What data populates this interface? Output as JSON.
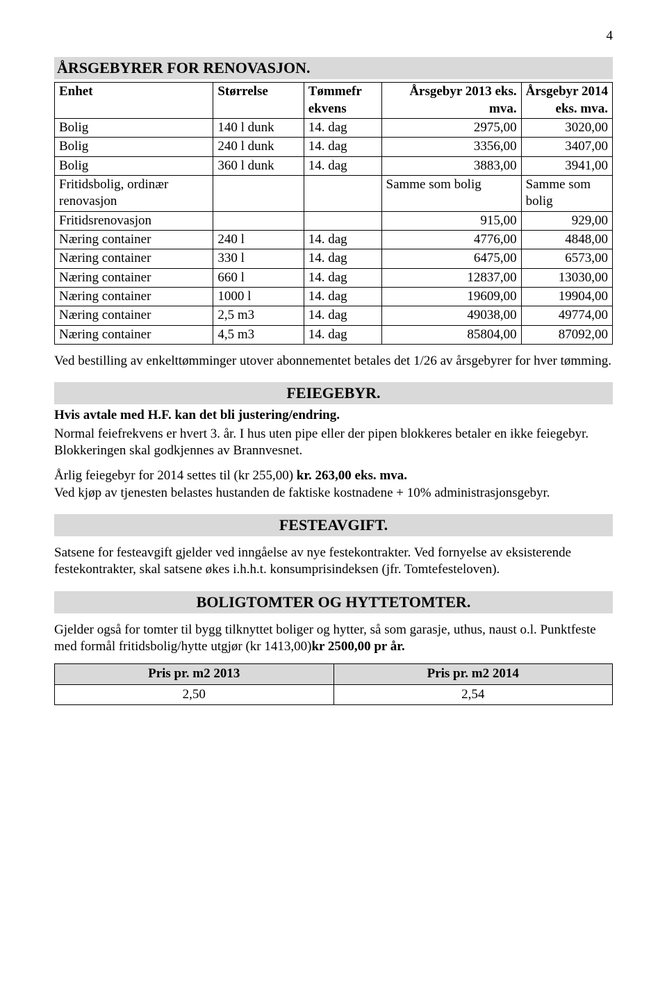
{
  "page_number": "4",
  "renovation": {
    "title": "ÅRSGEBYRER FOR RENOVASJON.",
    "headers": {
      "unit": "Enhet",
      "size": "Størrelse",
      "freq_l1": "Tømmefr",
      "freq_l2": "ekvens",
      "fee2013_l1": "Årsgebyr 2013 eks.",
      "fee2013_l2": "mva.",
      "fee2014_l1": "Årsgebyr 2014",
      "fee2014_l2": "eks. mva."
    },
    "rows": [
      {
        "unit": "Bolig",
        "size": "140 l dunk",
        "freq": "14. dag",
        "a": "2975,00",
        "b": "3020,00"
      },
      {
        "unit": "Bolig",
        "size": "240 l dunk",
        "freq": "14. dag",
        "a": "3356,00",
        "b": "3407,00"
      },
      {
        "unit": "Bolig",
        "size": "360 l dunk",
        "freq": "14. dag",
        "a": "3883,00",
        "b": "3941,00"
      }
    ],
    "fritids_ord_l1": "Fritidsbolig, ordinær",
    "fritids_ord_l2": "renovasjon",
    "samme_a": "Samme som bolig",
    "samme_b": "Samme som bolig",
    "fritidsrenov": {
      "unit": "Fritidsrenovasjon",
      "a": "915,00",
      "b": "929,00"
    },
    "naering": [
      {
        "unit": "Næring container",
        "size": "240 l",
        "freq": "14. dag",
        "a": "4776,00",
        "b": "4848,00"
      },
      {
        "unit": "Næring container",
        "size": "330 l",
        "freq": "14. dag",
        "a": "6475,00",
        "b": "6573,00"
      },
      {
        "unit": "Næring container",
        "size": "660 l",
        "freq": "14. dag",
        "a": "12837,00",
        "b": "13030,00"
      },
      {
        "unit": "Næring container",
        "size": "1000 l",
        "freq": "14. dag",
        "a": "19609,00",
        "b": "19904,00"
      },
      {
        "unit": "Næring container",
        "size": "2,5 m3",
        "freq": "14. dag",
        "a": "49038,00",
        "b": "49774,00"
      },
      {
        "unit": "Næring container",
        "size": "4,5 m3",
        "freq": "14. dag",
        "a": "85804,00",
        "b": "87092,00"
      }
    ],
    "footnote": "Ved bestilling av enkelttømminger utover abonnementet betales det 1/26 av årsgebyrer for hver tømming."
  },
  "feiegebyr": {
    "title": "FEIEGEBYR.",
    "line1": "Hvis avtale med H.F. kan det bli justering/endring.",
    "line2": "Normal feiefrekvens er hvert 3. år. I hus uten pipe eller der pipen blokkeres betaler en ikke feiegebyr. Blokkeringen skal godkjennes av Brannvesnet.",
    "line3_pre": "Årlig feiegebyr for 2014 settes til (kr 255,00) ",
    "line3_bold": "kr. 263,00 eks. mva.",
    "line4": "Ved kjøp av tjenesten belastes hustanden de faktiske kostnadene + 10% administrasjonsgebyr."
  },
  "festeavgift": {
    "title": "FESTEAVGIFT.",
    "body": "Satsene for festeavgift gjelder ved inngåelse av nye festekontrakter. Ved fornyelse av eksisterende festekontrakter, skal satsene økes i.h.h.t. konsumprisindeksen (jfr. Tomtefesteloven)."
  },
  "boligtomter": {
    "title": "BOLIGTOMTER OG HYTTETOMTER.",
    "body_pre": "Gjelder også for tomter til bygg tilknyttet boliger og hytter, så som garasje, uthus, naust o.l. Punktfeste med formål fritidsbolig/hytte utgjør (kr 1413,00)",
    "body_bold": "kr 2500,00 pr år.",
    "table": {
      "h1": "Pris pr. m2  2013",
      "h2": "Pris pr. m2  2014",
      "v1": "2,50",
      "v2": "2,54"
    }
  }
}
